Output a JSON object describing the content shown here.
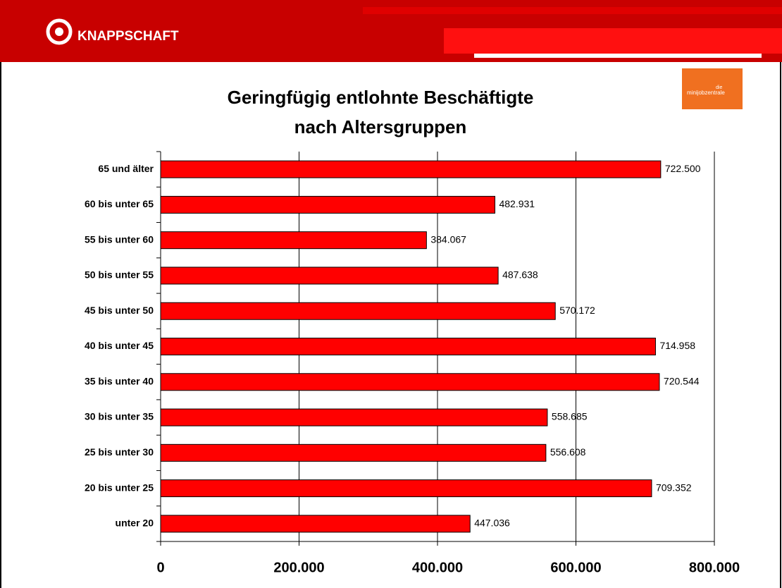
{
  "header": {
    "brand": "KNAPPSCHAFT",
    "logo_small": "die",
    "logo_name": "minijobzentrale"
  },
  "chart_data": {
    "type": "bar",
    "orientation": "horizontal",
    "title": [
      "Geringfügig entlohnte Beschäftigte",
      "nach Altersgruppen"
    ],
    "categories": [
      "65 und älter",
      "60 bis unter 65",
      "55 bis unter 60",
      "50 bis unter 55",
      "45 bis unter 50",
      "40 bis unter 45",
      "35 bis unter 40",
      "30 bis unter 35",
      "25 bis unter 30",
      "20 bis unter 25",
      "unter 20"
    ],
    "values": [
      722500,
      482931,
      384067,
      487638,
      570172,
      714958,
      720544,
      558685,
      556608,
      709352,
      447036
    ],
    "value_labels": [
      "722.500",
      "482.931",
      "384.067",
      "487.638",
      "570.172",
      "714.958",
      "720.544",
      "558.685",
      "556.608",
      "709.352",
      "447.036"
    ],
    "color": "#ff0000",
    "xlim": [
      0,
      800000
    ],
    "xticks": [
      0,
      {
        "value": 200000,
        "label": "200.000"
      },
      {
        "value": 400000,
        "label": "400.000"
      },
      {
        "value": 600000,
        "label": "600.000"
      },
      {
        "value": 800000,
        "label": "800.000"
      }
    ],
    "grid": true
  }
}
